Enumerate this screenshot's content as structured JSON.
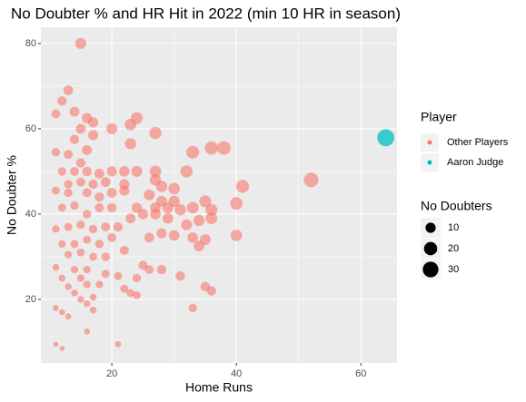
{
  "chart_data": {
    "type": "scatter",
    "title": "No Doubter % and HR Hit in 2022 (min 10 HR in season)",
    "x_label": "Home Runs",
    "y_label": "No Doubter %",
    "xlim": [
      8.6,
      65.8
    ],
    "ylim": [
      5.1,
      83.8
    ],
    "xticks": [
      20,
      40,
      60
    ],
    "yticks": [
      20,
      40,
      60,
      80
    ],
    "grid": true,
    "legend_title": "Player",
    "size_legend_title": "No Doubters",
    "size_legend": [
      10,
      20,
      30
    ],
    "series": [
      {
        "name": "Other Players",
        "color": "#F8766D",
        "x": [
          15,
          13,
          12,
          14,
          11,
          16,
          17,
          20,
          23,
          24,
          27,
          15,
          14,
          17,
          11,
          13,
          16,
          23,
          33,
          36,
          38,
          12,
          14,
          15,
          16,
          18,
          20,
          22,
          24,
          27,
          32,
          13,
          15,
          17,
          19,
          22,
          27,
          28,
          30,
          41,
          52,
          11,
          13,
          16,
          18,
          20,
          22,
          26,
          28,
          30,
          35,
          36,
          40,
          12,
          14,
          16,
          18,
          20,
          24,
          27,
          29,
          31,
          33,
          23,
          25,
          27,
          29,
          32,
          34,
          36,
          11,
          13,
          15,
          17,
          19,
          21,
          26,
          28,
          30,
          33,
          35,
          40,
          12,
          14,
          16,
          18,
          20,
          22,
          34,
          13,
          15,
          17,
          19,
          25,
          26,
          28,
          11,
          14,
          16,
          19,
          21,
          24,
          31,
          12,
          15,
          13,
          16,
          18,
          22,
          23,
          24,
          35,
          36,
          14,
          15,
          17,
          11,
          16,
          17,
          33,
          12,
          13,
          16,
          11,
          12,
          21
        ],
        "values": [
          80,
          69,
          66.5,
          64,
          63.5,
          62.5,
          61.5,
          60,
          61,
          62.5,
          59,
          60,
          57.5,
          58.5,
          54.5,
          54,
          55,
          56.5,
          54.5,
          55.5,
          55.5,
          50,
          50,
          52,
          50,
          49.5,
          50,
          50,
          50,
          50,
          50,
          47,
          47.5,
          47,
          47.5,
          47,
          48,
          46.5,
          46,
          46.5,
          48,
          45.5,
          45,
          45,
          44,
          45,
          45.5,
          44.5,
          43,
          43,
          43,
          41,
          42.5,
          41.5,
          42,
          40,
          41.5,
          41.5,
          41.5,
          41.5,
          41.5,
          41,
          41.5,
          39,
          40,
          40,
          39,
          37.5,
          38.5,
          39,
          36.5,
          37,
          37.5,
          36.5,
          37,
          37,
          34.5,
          35.5,
          35,
          34.5,
          34,
          35,
          33,
          33,
          34,
          33,
          34.5,
          31.5,
          32.5,
          30.5,
          31,
          30,
          30,
          28,
          27,
          27,
          27.5,
          27,
          27,
          26,
          25.5,
          25,
          25.5,
          25,
          25,
          23,
          23.5,
          23.5,
          22.5,
          21.5,
          21,
          23,
          22,
          21.5,
          20,
          20.5,
          18,
          19,
          17.5,
          18,
          17,
          16,
          12.5,
          9.5,
          8.5,
          9.5
        ],
        "sizes": [
          12,
          9,
          8,
          9,
          7,
          10,
          10,
          12,
          14,
          15,
          16,
          9,
          8,
          10,
          6,
          7,
          9,
          13,
          18,
          20,
          21,
          6,
          7,
          8,
          8,
          9,
          10,
          11,
          12,
          14,
          16,
          6,
          7,
          8,
          9,
          10,
          13,
          13,
          14,
          19,
          25,
          5,
          6,
          7,
          8,
          9,
          10,
          12,
          12,
          13,
          15,
          15,
          17,
          5,
          6,
          6,
          7,
          8,
          10,
          11,
          12,
          13,
          14,
          9,
          10,
          11,
          11,
          12,
          13,
          14,
          4,
          5,
          6,
          6,
          7,
          8,
          9,
          10,
          11,
          11,
          12,
          14,
          4,
          5,
          5,
          6,
          7,
          7,
          11,
          4,
          5,
          5,
          6,
          7,
          7,
          8,
          3,
          4,
          4,
          5,
          5,
          6,
          8,
          3,
          4,
          3,
          4,
          4,
          5,
          5,
          5,
          8,
          8,
          3,
          3,
          3,
          2,
          3,
          3,
          6,
          2,
          2,
          2,
          1,
          1,
          2
        ]
      },
      {
        "name": "Aaron Judge",
        "color": "#00BFC4",
        "x": [
          64
        ],
        "values": [
          57.9
        ],
        "sizes": [
          37
        ]
      }
    ]
  }
}
